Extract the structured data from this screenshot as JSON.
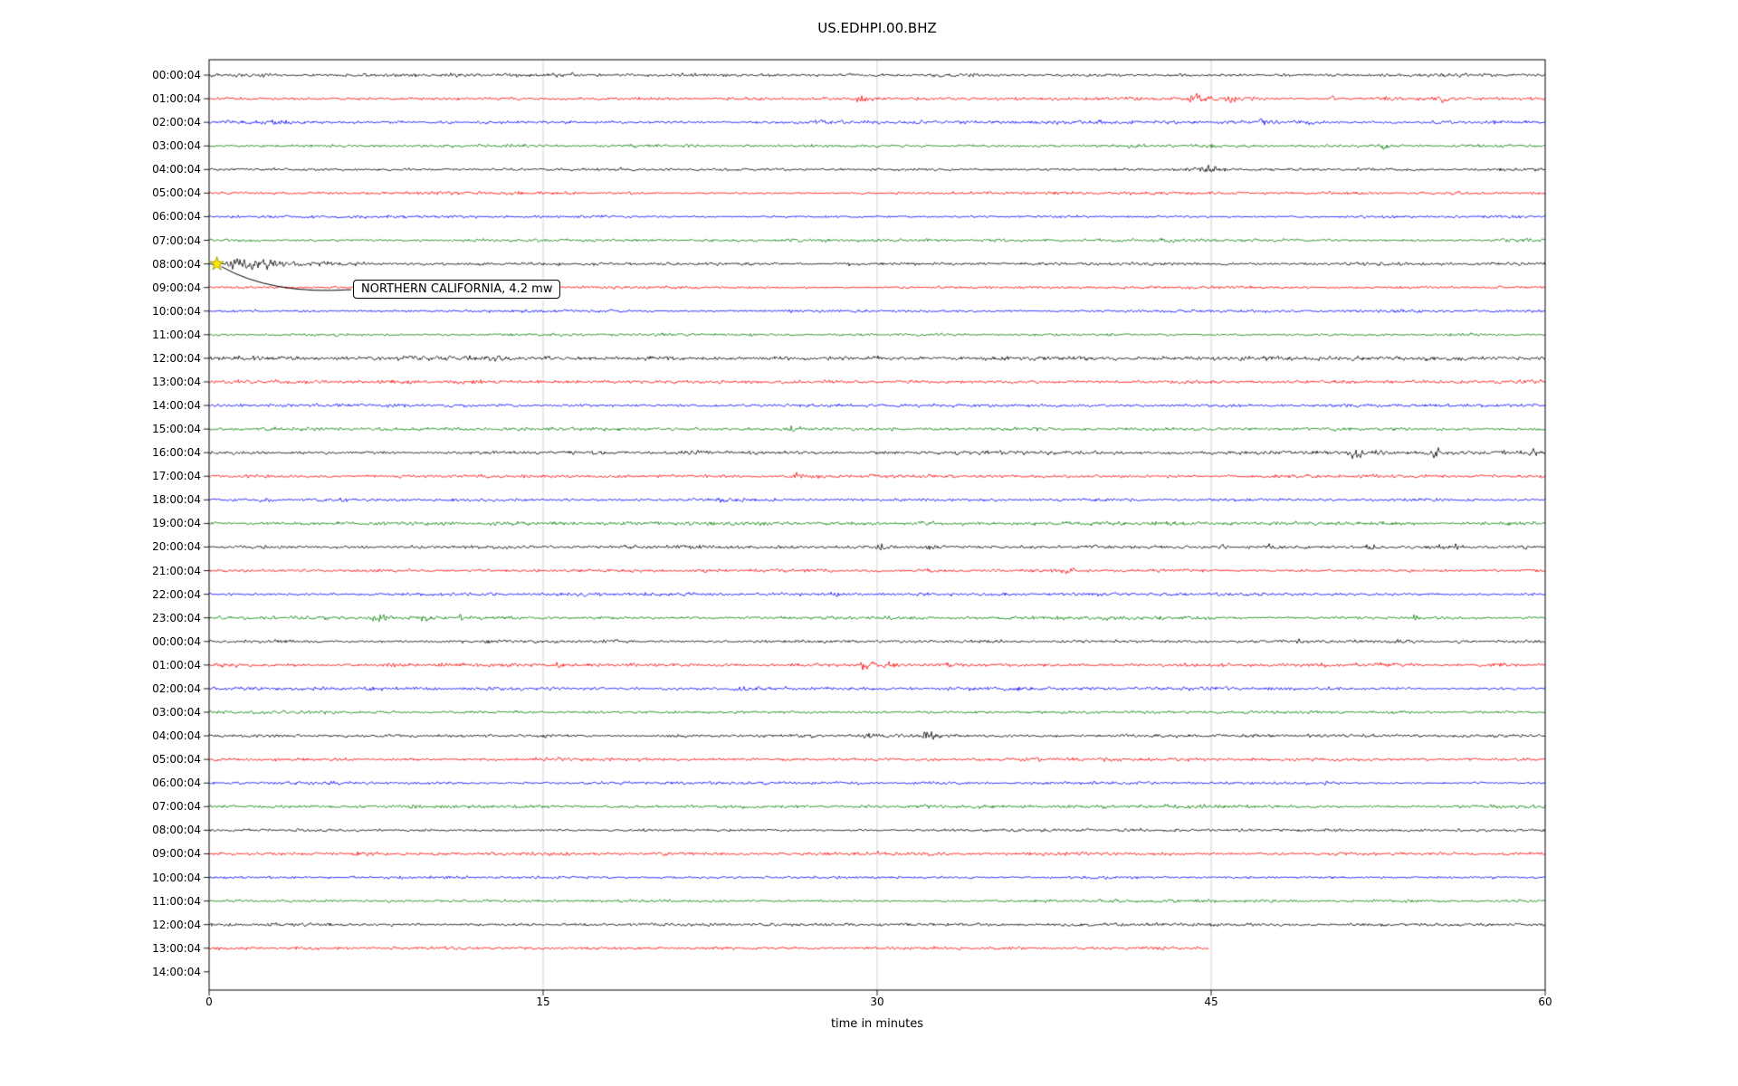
{
  "annotation": {
    "text": "NORTHERN CALIFORNIA, 4.2 mw",
    "event_row_label": "08:00:04",
    "event_row_index": 8,
    "event_time_minutes": 0.35,
    "marker": "star-icon",
    "marker_color": "#ffe600"
  },
  "chart_data": {
    "type": "line",
    "title": "US.EDHPI.00.BHZ",
    "xlabel": "time in minutes",
    "x_ticks": [
      0,
      15,
      30,
      45,
      60
    ],
    "x_range_minutes": [
      0,
      60
    ],
    "grid": "vertical-only",
    "trace_color_cycle": [
      "#000000",
      "#ff0000",
      "#0000ff",
      "#008000"
    ],
    "rows": [
      {
        "label": "00:00:04",
        "color": "#000000",
        "noise": 2.6,
        "events": [
          {
            "t": 16.3,
            "a": 3,
            "d": 0.15
          },
          {
            "t": 32.8,
            "a": 2.2,
            "d": 0.12
          }
        ]
      },
      {
        "label": "01:00:04",
        "color": "#ff0000",
        "noise": 2.6,
        "events": [
          {
            "t": 27.6,
            "a": 3,
            "d": 0.25
          },
          {
            "t": 29.3,
            "a": 6.5,
            "d": 0.45
          },
          {
            "t": 41.3,
            "a": 3,
            "d": 0.3
          },
          {
            "t": 44.3,
            "a": 6.5,
            "d": 0.5
          },
          {
            "t": 45.9,
            "a": 5,
            "d": 0.4
          },
          {
            "t": 50.4,
            "a": 3,
            "d": 0.25
          },
          {
            "t": 52.9,
            "a": 3,
            "d": 0.25
          },
          {
            "t": 55.3,
            "a": 5.5,
            "d": 0.35
          }
        ]
      },
      {
        "label": "02:00:04",
        "color": "#0000ff",
        "noise": 3.0,
        "events": [
          {
            "t": 3.0,
            "a": 4.5,
            "d": 0.4
          },
          {
            "t": 27.2,
            "a": 4.5,
            "d": 0.4
          },
          {
            "t": 31.8,
            "a": 3,
            "d": 0.3
          },
          {
            "t": 47.2,
            "a": 3.5,
            "d": 0.3
          },
          {
            "t": 49.4,
            "a": 3.5,
            "d": 0.3
          },
          {
            "t": 55.0,
            "a": 2.5,
            "d": 0.3
          }
        ]
      },
      {
        "label": "03:00:04",
        "color": "#008000",
        "noise": 2.6,
        "events": [
          {
            "t": 41.4,
            "a": 4,
            "d": 0.3
          },
          {
            "t": 44.9,
            "a": 2.5,
            "d": 0.25
          },
          {
            "t": 52.7,
            "a": 3.5,
            "d": 0.3
          }
        ]
      },
      {
        "label": "04:00:04",
        "color": "#000000",
        "noise": 2.4,
        "events": [
          {
            "t": 18.4,
            "a": 2.5,
            "d": 0.12
          },
          {
            "t": 43.9,
            "a": 3,
            "d": 0.3
          },
          {
            "t": 44.9,
            "a": 7.5,
            "d": 0.55
          }
        ]
      },
      {
        "label": "05:00:04",
        "color": "#ff0000",
        "noise": 2.4,
        "events": []
      },
      {
        "label": "06:00:04",
        "color": "#0000ff",
        "noise": 2.2,
        "events": []
      },
      {
        "label": "07:00:04",
        "color": "#008000",
        "noise": 2.6,
        "events": []
      },
      {
        "label": "08:00:04",
        "color": "#000000",
        "noise": 2.6,
        "events": [
          {
            "t": 1.0,
            "a": 13,
            "at": 0.15,
            "d": 0.9
          },
          {
            "t": 2.2,
            "a": 6,
            "d": 1.2
          },
          {
            "t": 4.5,
            "a": 2.5,
            "d": 2.5
          }
        ]
      },
      {
        "label": "09:00:04",
        "color": "#ff0000",
        "noise": 2.2,
        "events": []
      },
      {
        "label": "10:00:04",
        "color": "#0000ff",
        "noise": 2.2,
        "events": []
      },
      {
        "label": "11:00:04",
        "color": "#008000",
        "noise": 2.2,
        "events": []
      },
      {
        "label": "12:00:04",
        "color": "#000000",
        "noise": 3.4,
        "events": [
          {
            "t": 4.0,
            "a": 1.5,
            "d": 0.8
          },
          {
            "t": 9.0,
            "a": 1.5,
            "d": 0.6
          },
          {
            "t": 30.0,
            "a": 1.5,
            "d": 0.5
          }
        ]
      },
      {
        "label": "13:00:04",
        "color": "#ff0000",
        "noise": 2.8,
        "events": []
      },
      {
        "label": "14:00:04",
        "color": "#0000ff",
        "noise": 2.6,
        "events": [
          {
            "t": 1.5,
            "a": 2,
            "d": 0.4
          }
        ]
      },
      {
        "label": "15:00:04",
        "color": "#008000",
        "noise": 2.8,
        "events": [
          {
            "t": 2.6,
            "a": 3.5,
            "d": 0.5
          },
          {
            "t": 26.2,
            "a": 3.5,
            "d": 0.5
          }
        ]
      },
      {
        "label": "16:00:04",
        "color": "#000000",
        "noise": 3.0,
        "events": [
          {
            "t": 48.2,
            "a": 2.5,
            "d": 0.3
          },
          {
            "t": 51.4,
            "a": 7,
            "d": 0.5
          },
          {
            "t": 52.6,
            "a": 5,
            "d": 0.4
          },
          {
            "t": 55.0,
            "a": 6,
            "d": 0.45
          },
          {
            "t": 59.4,
            "a": 4.5,
            "d": 0.4
          }
        ]
      },
      {
        "label": "17:00:04",
        "color": "#ff0000",
        "noise": 2.6,
        "events": [
          {
            "t": 12.3,
            "a": 3.5,
            "d": 0.25
          },
          {
            "t": 26.4,
            "a": 5,
            "d": 0.4
          },
          {
            "t": 27.2,
            "a": 4,
            "d": 0.3
          }
        ]
      },
      {
        "label": "18:00:04",
        "color": "#0000ff",
        "noise": 2.8,
        "events": [
          {
            "t": 2.3,
            "a": 3,
            "d": 0.3
          },
          {
            "t": 6.0,
            "a": 2.5,
            "d": 0.3
          },
          {
            "t": 23.0,
            "a": 2.5,
            "d": 0.3
          }
        ]
      },
      {
        "label": "19:00:04",
        "color": "#008000",
        "noise": 2.8,
        "events": [
          {
            "t": 25.0,
            "a": 1.5,
            "d": 0.4
          },
          {
            "t": 32.0,
            "a": 4,
            "d": 0.5
          },
          {
            "t": 33.8,
            "a": 4.5,
            "d": 0.1
          }
        ]
      },
      {
        "label": "20:00:04",
        "color": "#000000",
        "noise": 2.8,
        "events": [
          {
            "t": 30.2,
            "a": 4.5,
            "d": 0.4
          },
          {
            "t": 32.3,
            "a": 3.5,
            "d": 0.3
          },
          {
            "t": 45.4,
            "a": 3.5,
            "d": 0.3
          },
          {
            "t": 47.6,
            "a": 3,
            "d": 0.3
          },
          {
            "t": 52.1,
            "a": 3.5,
            "d": 0.3
          },
          {
            "t": 55.9,
            "a": 3.5,
            "d": 0.3
          },
          {
            "t": 59.0,
            "a": 2.5,
            "d": 0.25
          }
        ]
      },
      {
        "label": "21:00:04",
        "color": "#ff0000",
        "noise": 2.6,
        "events": [
          {
            "t": 32.3,
            "a": 3.5,
            "d": 0.3
          },
          {
            "t": 38.5,
            "a": 3.5,
            "d": 0.3
          }
        ]
      },
      {
        "label": "22:00:04",
        "color": "#0000ff",
        "noise": 2.6,
        "events": [
          {
            "t": 21.5,
            "a": 2,
            "d": 0.3
          },
          {
            "t": 28.0,
            "a": 2,
            "d": 0.3
          }
        ]
      },
      {
        "label": "23:00:04",
        "color": "#008000",
        "noise": 3.0,
        "events": [
          {
            "t": 4.0,
            "a": 2.5,
            "d": 0.4
          },
          {
            "t": 7.5,
            "a": 5,
            "d": 0.5
          },
          {
            "t": 9.7,
            "a": 4,
            "d": 0.5
          },
          {
            "t": 11.3,
            "a": 6,
            "d": 0.12
          },
          {
            "t": 54.0,
            "a": 3.5,
            "d": 0.35
          }
        ]
      },
      {
        "label": "00:00:04",
        "color": "#000000",
        "noise": 2.7,
        "events": [
          {
            "t": 48.9,
            "a": 4.5,
            "d": 0.3
          },
          {
            "t": 56.2,
            "a": 2.5,
            "d": 0.25
          }
        ]
      },
      {
        "label": "01:00:04",
        "color": "#ff0000",
        "noise": 2.8,
        "events": [
          {
            "t": 8.0,
            "a": 3.5,
            "d": 0.3
          },
          {
            "t": 15.5,
            "a": 3.5,
            "d": 0.3
          },
          {
            "t": 29.4,
            "a": 5.5,
            "d": 0.45
          },
          {
            "t": 30.4,
            "a": 4,
            "d": 0.3
          }
        ]
      },
      {
        "label": "02:00:04",
        "color": "#0000ff",
        "noise": 2.8,
        "events": [
          {
            "t": 23.8,
            "a": 4.5,
            "d": 0.35
          },
          {
            "t": 24.6,
            "a": 3.5,
            "d": 0.25
          }
        ]
      },
      {
        "label": "03:00:04",
        "color": "#008000",
        "noise": 2.4,
        "events": []
      },
      {
        "label": "04:00:04",
        "color": "#000000",
        "noise": 2.6,
        "events": [
          {
            "t": 27.0,
            "a": 2,
            "d": 0.2
          },
          {
            "t": 29.5,
            "a": 3.5,
            "d": 0.2
          },
          {
            "t": 32.3,
            "a": 7.5,
            "d": 0.45
          },
          {
            "t": 33.0,
            "a": 5,
            "d": 0.3
          }
        ]
      },
      {
        "label": "05:00:04",
        "color": "#ff0000",
        "noise": 2.8,
        "events": []
      },
      {
        "label": "06:00:04",
        "color": "#0000ff",
        "noise": 2.4,
        "events": []
      },
      {
        "label": "07:00:04",
        "color": "#008000",
        "noise": 2.8,
        "events": []
      },
      {
        "label": "08:00:04",
        "color": "#000000",
        "noise": 2.3,
        "events": []
      },
      {
        "label": "09:00:04",
        "color": "#ff0000",
        "noise": 2.8,
        "events": []
      },
      {
        "label": "10:00:04",
        "color": "#0000ff",
        "noise": 2.4,
        "events": []
      },
      {
        "label": "11:00:04",
        "color": "#008000",
        "noise": 2.5,
        "events": []
      },
      {
        "label": "12:00:04",
        "color": "#000000",
        "noise": 2.8,
        "events": []
      },
      {
        "label": "13:00:04",
        "color": "#ff0000",
        "noise": 2.6,
        "extent": 0.748,
        "events": []
      },
      {
        "label": "14:00:04",
        "color": "#000000",
        "noise": 0,
        "extent": 0,
        "events": []
      }
    ]
  }
}
